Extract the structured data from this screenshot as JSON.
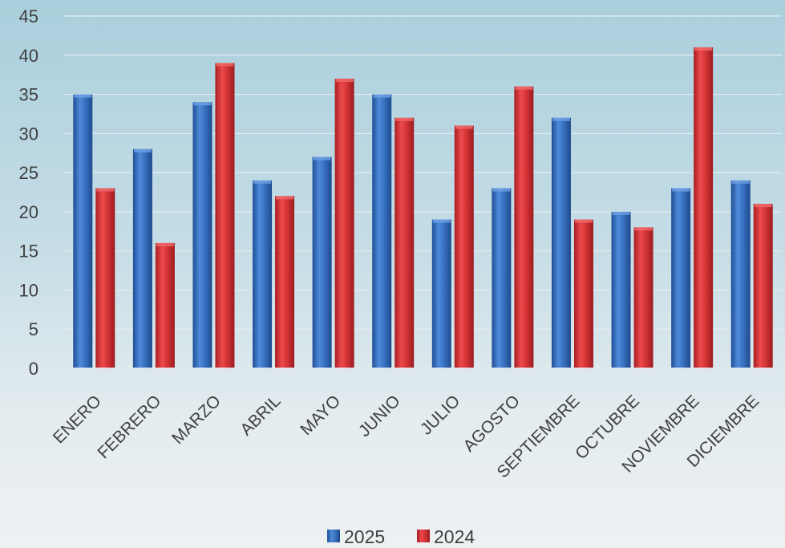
{
  "chart_data": {
    "type": "bar",
    "categories": [
      "ENERO",
      "FEBRERO",
      "MARZO",
      "ABRIL",
      "MAYO",
      "JUNIO",
      "JULIO",
      "AGOSTO",
      "SEPTIEMBRE",
      "OCTUBRE",
      "NOVIEMBRE",
      "DICIEMBRE"
    ],
    "series": [
      {
        "name": "2025",
        "values": [
          35,
          28,
          34,
          24,
          27,
          35,
          19,
          23,
          32,
          20,
          23,
          24
        ],
        "color": "#3a6fbf"
      },
      {
        "name": "2024",
        "values": [
          23,
          16,
          39,
          22,
          37,
          32,
          31,
          36,
          19,
          18,
          41,
          21
        ],
        "color": "#d9383a"
      }
    ],
    "ylim": [
      0,
      45
    ],
    "yticks": [
      0,
      5,
      10,
      15,
      20,
      25,
      30,
      35,
      40,
      45
    ],
    "grid": true,
    "legend": "bottom-center",
    "title": "",
    "xlabel": "",
    "ylabel": ""
  }
}
